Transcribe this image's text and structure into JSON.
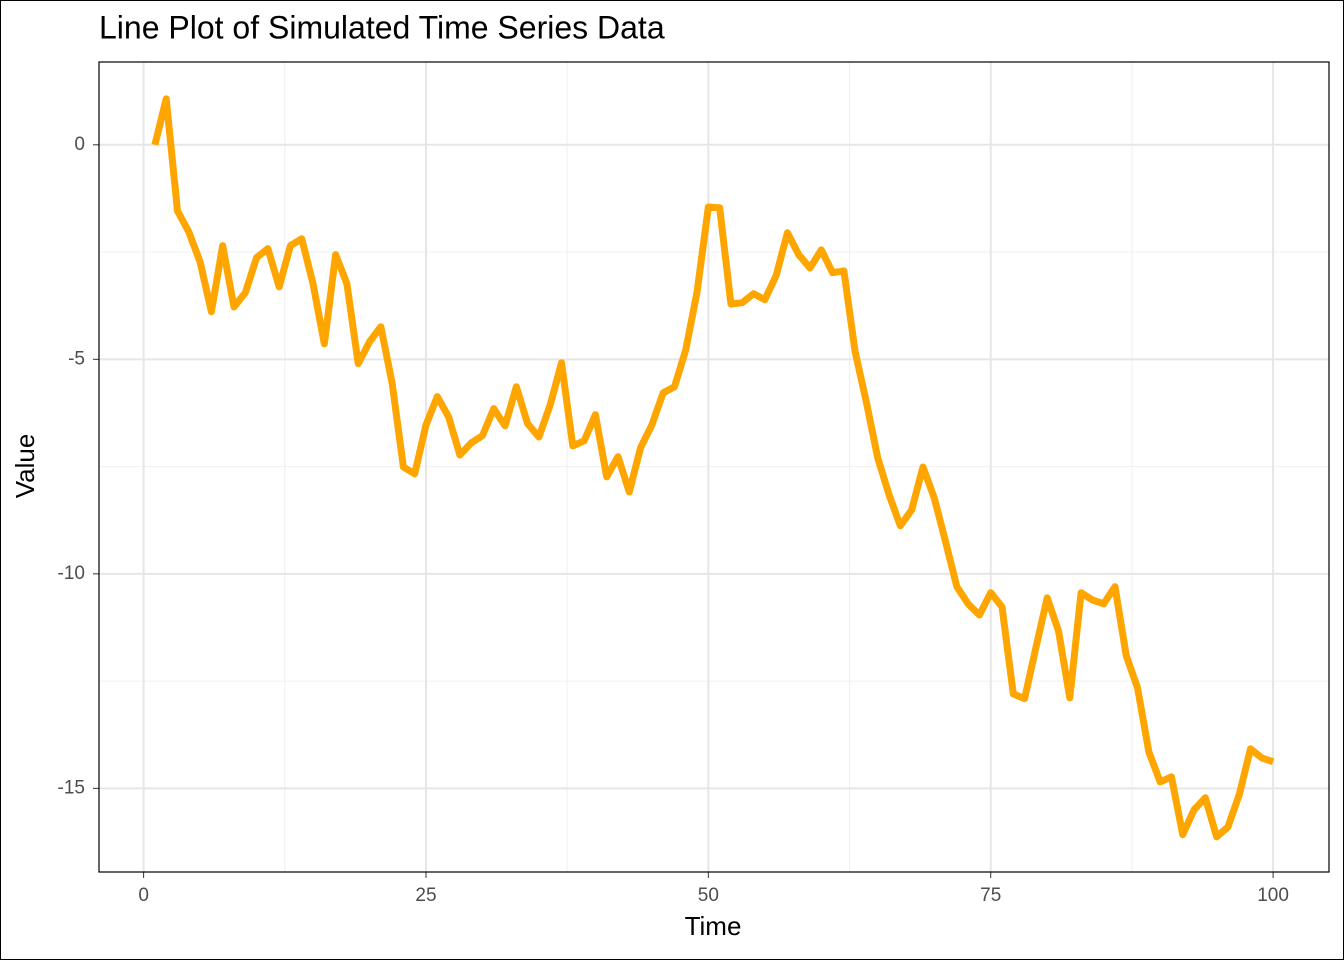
{
  "chart_data": {
    "type": "line",
    "title": "Line Plot of Simulated Time Series Data",
    "x_label": "Time",
    "y_label": "Value",
    "x": [
      1,
      2,
      3,
      4,
      5,
      6,
      7,
      8,
      9,
      10,
      11,
      12,
      13,
      14,
      15,
      16,
      17,
      18,
      19,
      20,
      21,
      22,
      23,
      24,
      25,
      26,
      27,
      28,
      29,
      30,
      31,
      32,
      33,
      34,
      35,
      36,
      37,
      38,
      39,
      40,
      41,
      42,
      43,
      44,
      45,
      46,
      47,
      48,
      49,
      50,
      51,
      52,
      53,
      54,
      55,
      56,
      57,
      58,
      59,
      60,
      61,
      62,
      63,
      64,
      65,
      66,
      67,
      68,
      69,
      70,
      71,
      72,
      73,
      74,
      75,
      76,
      77,
      78,
      79,
      80,
      81,
      82,
      83,
      84,
      85,
      86,
      87,
      88,
      89,
      90,
      91,
      92,
      93,
      94,
      95,
      96,
      97,
      98,
      99,
      100
    ],
    "series": [
      {
        "color": "#FFA500",
        "values": [
          0,
          1.07,
          -1.54,
          -2.03,
          -2.73,
          -3.89,
          -2.35,
          -3.78,
          -3.45,
          -2.63,
          -2.42,
          -3.31,
          -2.35,
          -2.19,
          -3.24,
          -4.64,
          -2.56,
          -3.24,
          -5.1,
          -4.59,
          -4.24,
          -5.55,
          -7.51,
          -7.67,
          -6.53,
          -5.87,
          -6.34,
          -7.23,
          -6.95,
          -6.78,
          -6.15,
          -6.55,
          -5.64,
          -6.5,
          -6.81,
          -6.06,
          -5.08,
          -7.02,
          -6.9,
          -6.29,
          -7.74,
          -7.27,
          -8.09,
          -7.06,
          -6.53,
          -5.78,
          -5.64,
          -4.78,
          -3.43,
          -1.45,
          -1.47,
          -3.71,
          -3.68,
          -3.47,
          -3.61,
          -3.05,
          -2.05,
          -2.56,
          -2.87,
          -2.45,
          -2.98,
          -2.94,
          -4.83,
          -6.01,
          -7.3,
          -8.16,
          -8.88,
          -8.51,
          -7.51,
          -8.23,
          -9.25,
          -10.3,
          -10.7,
          -10.96,
          -10.44,
          -10.77,
          -12.8,
          -12.91,
          -11.72,
          -10.56,
          -11.33,
          -12.89,
          -10.44,
          -10.61,
          -10.7,
          -10.3,
          -11.91,
          -12.66,
          -14.15,
          -14.85,
          -14.73,
          -16.08,
          -15.5,
          -15.22,
          -16.13,
          -15.9,
          -15.15,
          -14.08,
          -14.29,
          -14.38
        ]
      }
    ],
    "xlim": [
      -3.95,
      104.95
    ],
    "xticks": [
      0,
      25,
      50,
      75,
      100
    ],
    "ylim": [
      -16.95,
      1.93
    ],
    "yticks": [
      0,
      -5,
      -10,
      -15
    ],
    "grid": true
  }
}
